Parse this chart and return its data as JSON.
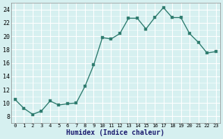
{
  "x": [
    0,
    1,
    2,
    3,
    4,
    5,
    6,
    7,
    8,
    9,
    10,
    11,
    12,
    13,
    14,
    15,
    16,
    17,
    18,
    19,
    20,
    21,
    22,
    23
  ],
  "y": [
    10.5,
    9.2,
    8.3,
    8.8,
    10.3,
    9.7,
    9.9,
    10.0,
    12.5,
    15.7,
    19.8,
    19.6,
    20.4,
    22.7,
    22.7,
    21.1,
    22.8,
    24.3,
    22.8,
    22.8,
    20.4,
    19.1,
    17.5,
    17.7
  ],
  "line_color": "#2e7b6e",
  "marker": "s",
  "marker_size": 2.5,
  "bg_color": "#d6f0f0",
  "grid_color": "#ffffff",
  "xlabel": "Humidex (Indice chaleur)",
  "ylim": [
    7,
    25
  ],
  "xlim": [
    -0.5,
    23.5
  ],
  "yticks": [
    8,
    10,
    12,
    14,
    16,
    18,
    20,
    22,
    24
  ],
  "xticks": [
    0,
    1,
    2,
    3,
    4,
    5,
    6,
    7,
    8,
    9,
    10,
    11,
    12,
    13,
    14,
    15,
    16,
    17,
    18,
    19,
    20,
    21,
    22,
    23
  ]
}
